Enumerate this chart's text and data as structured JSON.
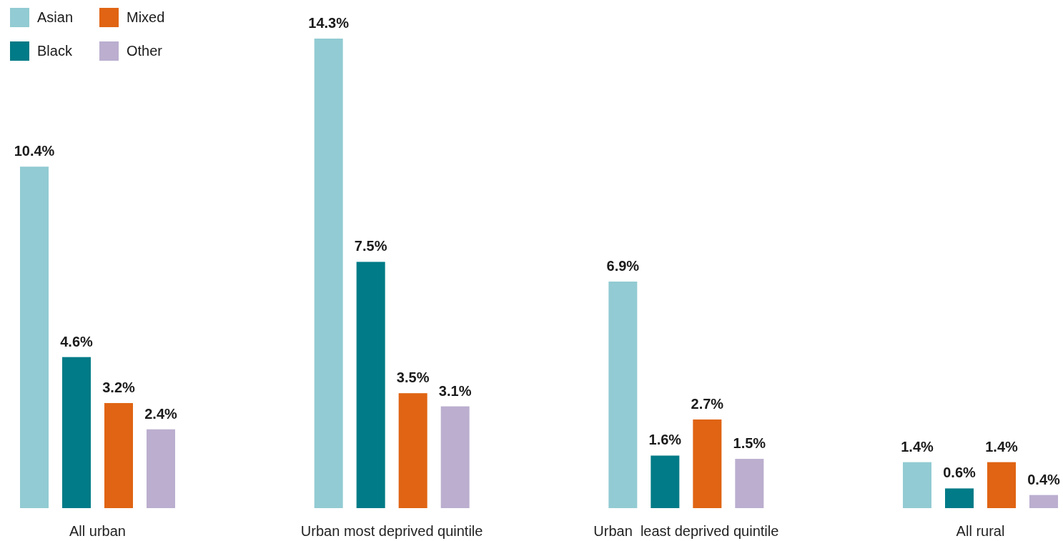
{
  "chart_data": {
    "type": "bar",
    "categories": [
      "All urban",
      "Urban most deprived quintile",
      "Urban  least deprived quintile",
      "All rural"
    ],
    "series": [
      {
        "name": "Asian",
        "color": "#92cbd3",
        "values": [
          10.4,
          14.3,
          6.9,
          1.4
        ],
        "value_labels": [
          "10.4%",
          "14.3%",
          "6.9%",
          "1.4%"
        ]
      },
      {
        "name": "Black",
        "color": "#007b87",
        "values": [
          4.6,
          7.5,
          1.6,
          0.6
        ],
        "value_labels": [
          "4.6%",
          "7.5%",
          "1.6%",
          "0.6%"
        ]
      },
      {
        "name": "Mixed",
        "color": "#e06413",
        "values": [
          3.2,
          3.5,
          2.7,
          1.4
        ],
        "value_labels": [
          "3.2%",
          "3.5%",
          "2.7%",
          "1.4%"
        ]
      },
      {
        "name": "Other",
        "color": "#bbaecf",
        "values": [
          2.4,
          3.1,
          1.5,
          0.4
        ],
        "value_labels": [
          "2.4%",
          "3.1%",
          "1.5%",
          "0.4%"
        ]
      }
    ],
    "legend": "top left",
    "tick_labels": "x"
  }
}
